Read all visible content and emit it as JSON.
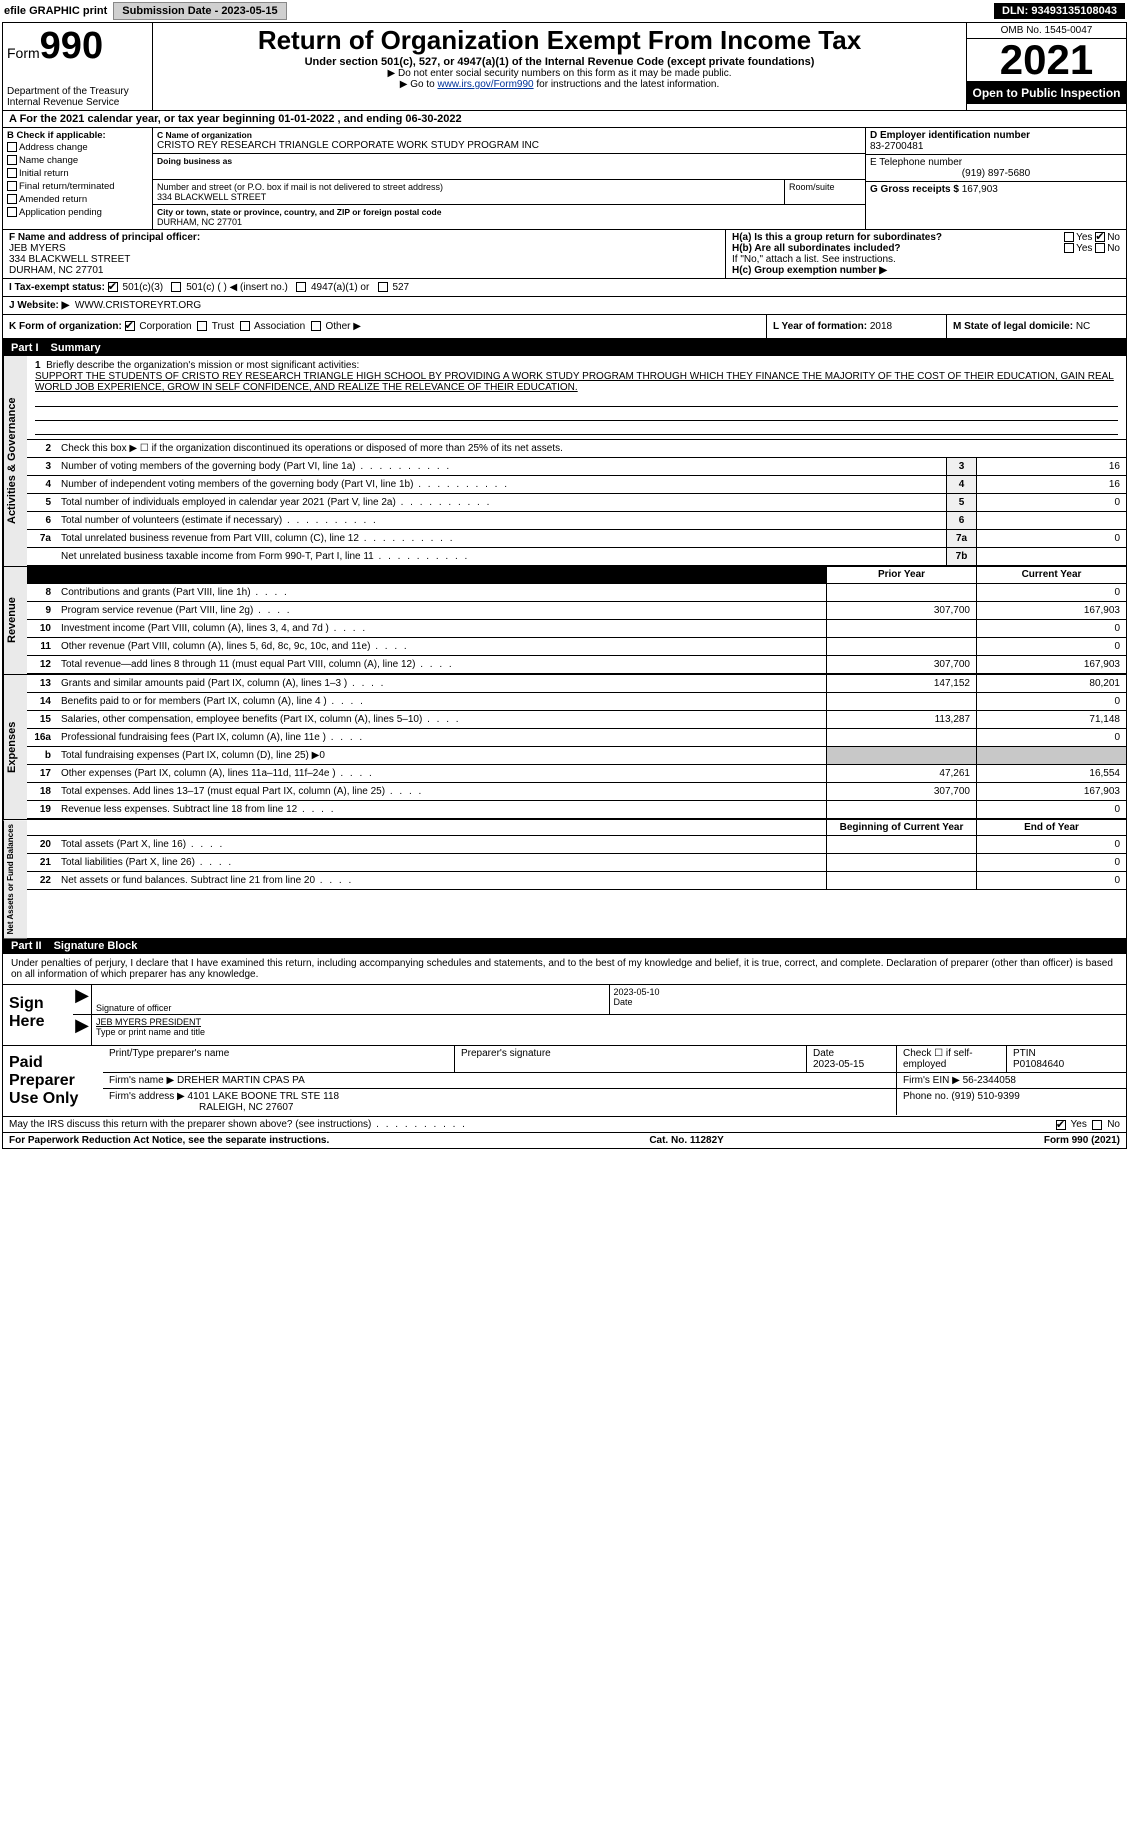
{
  "topbar": {
    "efile_label": "efile GRAPHIC print",
    "submission_label": "Submission Date - 2023-05-15",
    "dln": "DLN: 93493135108043"
  },
  "header": {
    "form_prefix": "Form",
    "form_number": "990",
    "dept": "Department of the Treasury",
    "irs": "Internal Revenue Service",
    "title": "Return of Organization Exempt From Income Tax",
    "subtitle": "Under section 501(c), 527, or 4947(a)(1) of the Internal Revenue Code (except private foundations)",
    "ssn_note": "▶ Do not enter social security numbers on this form as it may be made public.",
    "goto": "▶ Go to ",
    "goto_link": "www.irs.gov/Form990",
    "goto_suffix": " for instructions and the latest information.",
    "omb": "OMB No. 1545-0047",
    "year": "2021",
    "open": "Open to Public Inspection"
  },
  "line_a": "A For the 2021 calendar year, or tax year beginning 01-01-2022   , and ending 06-30-2022",
  "block_b": {
    "title": "B Check if applicable:",
    "opts": [
      "Address change",
      "Name change",
      "Initial return",
      "Final return/terminated",
      "Amended return",
      "Application pending"
    ]
  },
  "block_c": {
    "name_label": "C Name of organization",
    "name": "CRISTO REY RESEARCH TRIANGLE CORPORATE WORK STUDY PROGRAM INC",
    "dba_label": "Doing business as",
    "street_label": "Number and street (or P.O. box if mail is not delivered to street address)",
    "room_label": "Room/suite",
    "street": "334 BLACKWELL STREET",
    "city_label": "City or town, state or province, country, and ZIP or foreign postal code",
    "city": "DURHAM, NC  27701"
  },
  "block_d": {
    "ein_label": "D Employer identification number",
    "ein": "83-2700481",
    "tel_label": "E Telephone number",
    "tel": "(919) 897-5680",
    "gross_label": "G Gross receipts $",
    "gross": "167,903"
  },
  "block_f": {
    "label": "F Name and address of principal officer:",
    "name": "JEB MYERS",
    "street": "334 BLACKWELL STREET",
    "city": "DURHAM, NC  27701"
  },
  "block_h": {
    "ha": "H(a)  Is this a group return for subordinates?",
    "hb": "H(b)  Are all subordinates included?",
    "hb_note": "If \"No,\" attach a list. See instructions.",
    "hc": "H(c)  Group exemption number ▶",
    "yes": "Yes",
    "no": "No"
  },
  "block_i": {
    "label": "I  Tax-exempt status:",
    "o1": "501(c)(3)",
    "o2": "501(c) (   ) ◀ (insert no.)",
    "o3": "4947(a)(1) or",
    "o4": "527"
  },
  "block_j": {
    "label": "J  Website: ▶",
    "value": "WWW.CRISTOREYRT.ORG"
  },
  "block_k": {
    "label": "K Form of organization:",
    "opts": [
      "Corporation",
      "Trust",
      "Association",
      "Other ▶"
    ],
    "l_label": "L Year of formation:",
    "l_value": "2018",
    "m_label": "M State of legal domicile:",
    "m_value": "NC"
  },
  "part1": {
    "header": "Part I",
    "title": "Summary",
    "side_gov": "Activities & Governance",
    "side_rev": "Revenue",
    "side_exp": "Expenses",
    "side_net": "Net Assets or Fund Balances",
    "q1": "Briefly describe the organization's mission or most significant activities:",
    "mission": "SUPPORT THE STUDENTS OF CRISTO REY RESEARCH TRIANGLE HIGH SCHOOL BY PROVIDING A WORK STUDY PROGRAM THROUGH WHICH THEY FINANCE THE MAJORITY OF THE COST OF THEIR EDUCATION, GAIN REAL WORLD JOB EXPERIENCE, GROW IN SELF CONFIDENCE, AND REALIZE THE RELEVANCE OF THEIR EDUCATION.",
    "q2": "Check this box ▶ ☐ if the organization discontinued its operations or disposed of more than 25% of its net assets.",
    "lines_single": [
      {
        "n": "3",
        "d": "Number of voting members of the governing body (Part VI, line 1a)",
        "b": "3",
        "v": "16"
      },
      {
        "n": "4",
        "d": "Number of independent voting members of the governing body (Part VI, line 1b)",
        "b": "4",
        "v": "16"
      },
      {
        "n": "5",
        "d": "Total number of individuals employed in calendar year 2021 (Part V, line 2a)",
        "b": "5",
        "v": "0"
      },
      {
        "n": "6",
        "d": "Total number of volunteers (estimate if necessary)",
        "b": "6",
        "v": ""
      },
      {
        "n": "7a",
        "d": "Total unrelated business revenue from Part VIII, column (C), line 12",
        "b": "7a",
        "v": "0"
      },
      {
        "n": "",
        "d": "Net unrelated business taxable income from Form 990-T, Part I, line 11",
        "b": "7b",
        "v": ""
      }
    ],
    "col_prior": "Prior Year",
    "col_current": "Current Year",
    "col_begin": "Beginning of Current Year",
    "col_end": "End of Year",
    "rev_lines": [
      {
        "n": "8",
        "d": "Contributions and grants (Part VIII, line 1h)",
        "p": "",
        "c": "0"
      },
      {
        "n": "9",
        "d": "Program service revenue (Part VIII, line 2g)",
        "p": "307,700",
        "c": "167,903"
      },
      {
        "n": "10",
        "d": "Investment income (Part VIII, column (A), lines 3, 4, and 7d )",
        "p": "",
        "c": "0"
      },
      {
        "n": "11",
        "d": "Other revenue (Part VIII, column (A), lines 5, 6d, 8c, 9c, 10c, and 11e)",
        "p": "",
        "c": "0"
      },
      {
        "n": "12",
        "d": "Total revenue—add lines 8 through 11 (must equal Part VIII, column (A), line 12)",
        "p": "307,700",
        "c": "167,903"
      }
    ],
    "exp_lines": [
      {
        "n": "13",
        "d": "Grants and similar amounts paid (Part IX, column (A), lines 1–3 )",
        "p": "147,152",
        "c": "80,201"
      },
      {
        "n": "14",
        "d": "Benefits paid to or for members (Part IX, column (A), line 4 )",
        "p": "",
        "c": "0"
      },
      {
        "n": "15",
        "d": "Salaries, other compensation, employee benefits (Part IX, column (A), lines 5–10)",
        "p": "113,287",
        "c": "71,148"
      },
      {
        "n": "16a",
        "d": "Professional fundraising fees (Part IX, column (A), line 11e )",
        "p": "",
        "c": "0"
      },
      {
        "n": "b",
        "d": "Total fundraising expenses (Part IX, column (D), line 25) ▶0",
        "shaded": true
      },
      {
        "n": "17",
        "d": "Other expenses (Part IX, column (A), lines 11a–11d, 11f–24e )",
        "p": "47,261",
        "c": "16,554"
      },
      {
        "n": "18",
        "d": "Total expenses. Add lines 13–17 (must equal Part IX, column (A), line 25)",
        "p": "307,700",
        "c": "167,903"
      },
      {
        "n": "19",
        "d": "Revenue less expenses. Subtract line 18 from line 12",
        "p": "",
        "c": "0"
      }
    ],
    "net_lines": [
      {
        "n": "20",
        "d": "Total assets (Part X, line 16)",
        "p": "",
        "c": "0"
      },
      {
        "n": "21",
        "d": "Total liabilities (Part X, line 26)",
        "p": "",
        "c": "0"
      },
      {
        "n": "22",
        "d": "Net assets or fund balances. Subtract line 21 from line 20",
        "p": "",
        "c": "0"
      }
    ]
  },
  "part2": {
    "header": "Part II",
    "title": "Signature Block",
    "intro": "Under penalties of perjury, I declare that I have examined this return, including accompanying schedules and statements, and to the best of my knowledge and belief, it is true, correct, and complete. Declaration of preparer (other than officer) is based on all information of which preparer has any knowledge.",
    "sign_here": "Sign Here",
    "sig_officer": "Signature of officer",
    "sig_date": "2023-05-10",
    "date_label": "Date",
    "printed_name": "JEB MYERS PRESIDENT",
    "printed_label": "Type or print name and title",
    "paid_label": "Paid Preparer Use Only",
    "prep_name_label": "Print/Type preparer's name",
    "prep_sig_label": "Preparer's signature",
    "prep_date": "2023-05-15",
    "self_emp": "Check ☐ if self-employed",
    "ptin_label": "PTIN",
    "ptin": "P01084640",
    "firm_name_label": "Firm's name    ▶",
    "firm_name": "DREHER MARTIN CPAS PA",
    "firm_ein_label": "Firm's EIN ▶",
    "firm_ein": "56-2344058",
    "firm_addr_label": "Firm's address ▶",
    "firm_addr": "4101 LAKE BOONE TRL STE 118",
    "firm_city": "RALEIGH, NC  27607",
    "phone_label": "Phone no.",
    "phone": "(919) 510-9399",
    "discuss": "May the IRS discuss this return with the preparer shown above? (see instructions)",
    "paperwork": "For Paperwork Reduction Act Notice, see the separate instructions.",
    "cat": "Cat. No. 11282Y",
    "form_footer": "Form 990 (2021)"
  }
}
